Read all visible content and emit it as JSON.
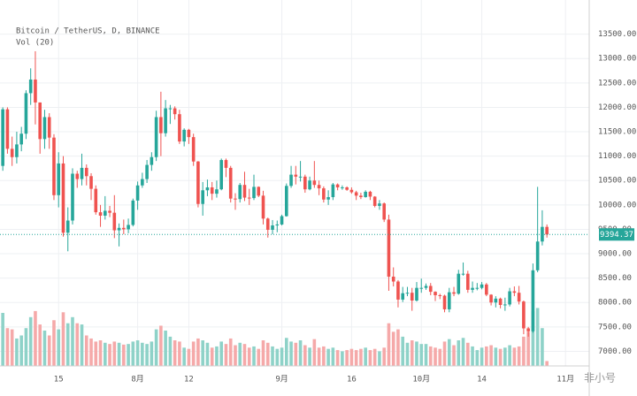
{
  "chart_data": {
    "type": "candlestick",
    "title": "Bitcoin / TetherUS, D, BINANCE",
    "subtitle": "Vol (20)",
    "watermark": "非小号",
    "up_color": "#26a69a",
    "down_color": "#ef5350",
    "up_volume_color": "#8ed2c8",
    "down_volume_color": "#f5a9a9",
    "grid": true,
    "ylim": [
      6700,
      14200
    ],
    "yticks": [
      {
        "value": 7000,
        "label": "7000.00"
      },
      {
        "value": 7500,
        "label": "7500.00"
      },
      {
        "value": 8000,
        "label": "8000.00"
      },
      {
        "value": 8500,
        "label": "8500.00"
      },
      {
        "value": 9000,
        "label": "9000.00"
      },
      {
        "value": 9500,
        "label": "9500.00"
      },
      {
        "value": 10000,
        "label": "10000.00"
      },
      {
        "value": 10500,
        "label": "10500.00"
      },
      {
        "value": 11000,
        "label": "11000.00"
      },
      {
        "value": 11500,
        "label": "11500.00"
      },
      {
        "value": 12000,
        "label": "12000.00"
      },
      {
        "value": 12500,
        "label": "12500.00"
      },
      {
        "value": 13000,
        "label": "13000.00"
      },
      {
        "value": 13500,
        "label": "13500.00"
      }
    ],
    "xlim": [
      -0.6,
      126.1
    ],
    "xticks": [
      {
        "value": 12,
        "label": "15"
      },
      {
        "value": 29,
        "label": "8月"
      },
      {
        "value": 40,
        "label": "12"
      },
      {
        "value": 60,
        "label": "9月"
      },
      {
        "value": 75,
        "label": "16"
      },
      {
        "value": 90,
        "label": "10月"
      },
      {
        "value": 103,
        "label": "14"
      },
      {
        "value": 121,
        "label": "11月"
      }
    ],
    "y2lim": [
      0,
      600
    ],
    "open": [
      10800,
      11960,
      11150,
      10980,
      11240,
      11460,
      12290,
      12570,
      12100,
      11350,
      11800,
      11380,
      10200,
      10850,
      9430,
      9680,
      10640,
      10530,
      10760,
      10590,
      10330,
      9850,
      9780,
      9880,
      9840,
      9480,
      9530,
      9500,
      9590,
      10090,
      10400,
      10530,
      10820,
      10980,
      11800,
      11470,
      11980,
      11980,
      11860,
      11300,
      11540,
      11390,
      10890,
      10020,
      10300,
      10360,
      10230,
      10320,
      10920,
      10760,
      10130,
      10120,
      10410,
      10150,
      10140,
      10370,
      10190,
      9720,
      9490,
      9580,
      9600,
      9770,
      10390,
      10620,
      10580,
      10580,
      10320,
      10500,
      10410,
      10340,
      10110,
      10160,
      10420,
      10360,
      10360,
      10310,
      10260,
      10190,
      10160,
      10270,
      10170,
      9980,
      10030,
      9700,
      8530,
      8430,
      8060,
      8190,
      8200,
      8040,
      8300,
      8300,
      8340,
      8220,
      8150,
      8140,
      7860,
      8210,
      8180,
      8590,
      8590,
      8260,
      8300,
      8300,
      8370,
      8160,
      8000,
      8080,
      7950,
      7960,
      8230,
      8200,
      8020,
      7470,
      7410,
      8660,
      9250,
      9550
    ],
    "high": [
      12000,
      12000,
      11400,
      11500,
      11600,
      12350,
      12800,
      13150,
      12100,
      11950,
      11880,
      11450,
      11080,
      11000,
      9950,
      10750,
      10700,
      11050,
      10830,
      10650,
      10400,
      10000,
      10180,
      9980,
      10200,
      9620,
      9700,
      9720,
      10130,
      10480,
      10660,
      10920,
      11080,
      11930,
      12320,
      12150,
      12050,
      12020,
      11950,
      11570,
      11560,
      11460,
      10900,
      10470,
      10520,
      10470,
      10500,
      10950,
      10950,
      10800,
      10240,
      10450,
      10680,
      10330,
      10620,
      10380,
      10290,
      9740,
      9690,
      9680,
      9800,
      10440,
      10800,
      10800,
      10900,
      10620,
      10580,
      10900,
      10500,
      10380,
      10300,
      10450,
      10440,
      10400,
      10380,
      10360,
      10290,
      10250,
      10300,
      10290,
      10180,
      10100,
      10050,
      9800,
      8720,
      8460,
      8320,
      8320,
      8300,
      8420,
      8490,
      8390,
      8400,
      8230,
      8180,
      8160,
      8300,
      8320,
      8670,
      8820,
      8650,
      8430,
      8400,
      8420,
      8400,
      8170,
      8130,
      8100,
      8100,
      8300,
      8330,
      8340,
      8040,
      7500,
      8800,
      10370,
      9890,
      9600
    ],
    "low": [
      10700,
      11050,
      10800,
      10850,
      11100,
      11350,
      12050,
      11650,
      11050,
      11150,
      11150,
      10100,
      9950,
      9350,
      9050,
      9600,
      10350,
      10400,
      10400,
      10100,
      9800,
      9550,
      9700,
      9750,
      9320,
      9150,
      9400,
      9420,
      9560,
      9900,
      10350,
      10450,
      10700,
      10900,
      11000,
      11400,
      11660,
      11750,
      11250,
      11200,
      11250,
      10800,
      9950,
      9780,
      10180,
      10100,
      10150,
      10300,
      10570,
      10050,
      9900,
      10050,
      10080,
      10000,
      10100,
      10160,
      9600,
      9330,
      9400,
      9440,
      9580,
      9760,
      10350,
      10420,
      10480,
      10250,
      10300,
      10350,
      10200,
      10050,
      10000,
      10100,
      10300,
      10310,
      10290,
      10230,
      10100,
      10120,
      10150,
      10100,
      9950,
      9900,
      9650,
      8240,
      8330,
      7900,
      8010,
      8130,
      7830,
      8020,
      8200,
      8260,
      8150,
      8030,
      8070,
      7800,
      7800,
      8130,
      8160,
      8550,
      8200,
      8200,
      8250,
      8270,
      8130,
      7940,
      7900,
      7880,
      7830,
      7920,
      8130,
      7960,
      7350,
      7300,
      7380,
      8620,
      9170,
      9330
    ],
    "close": [
      11960,
      11150,
      10980,
      11240,
      11460,
      12290,
      12570,
      12100,
      11350,
      11800,
      11380,
      10200,
      10850,
      9430,
      9680,
      10640,
      10530,
      10760,
      10590,
      10330,
      9850,
      9780,
      9880,
      9840,
      9480,
      9530,
      9500,
      9590,
      10090,
      10400,
      10530,
      10820,
      10980,
      11800,
      11470,
      11980,
      11980,
      11860,
      11300,
      11540,
      11390,
      10890,
      10020,
      10300,
      10360,
      10230,
      10320,
      10920,
      10760,
      10130,
      10120,
      10410,
      10150,
      10140,
      10370,
      10190,
      9720,
      9490,
      9580,
      9600,
      9770,
      10390,
      10620,
      10580,
      10580,
      10320,
      10500,
      10410,
      10340,
      10110,
      10160,
      10420,
      10360,
      10360,
      10310,
      10260,
      10190,
      10160,
      10270,
      10170,
      9980,
      10030,
      9700,
      8530,
      8430,
      8060,
      8190,
      8200,
      8040,
      8300,
      8300,
      8340,
      8220,
      8150,
      8140,
      7860,
      8210,
      8180,
      8590,
      8590,
      8260,
      8300,
      8300,
      8370,
      8160,
      8000,
      8080,
      7950,
      7960,
      8230,
      8200,
      8020,
      7470,
      7410,
      8660,
      9250,
      9550,
      9394.37
    ],
    "volume": [
      87,
      62,
      60,
      45,
      50,
      62,
      80,
      90,
      68,
      58,
      50,
      75,
      60,
      88,
      70,
      80,
      70,
      68,
      50,
      45,
      40,
      42,
      38,
      36,
      40,
      38,
      35,
      36,
      40,
      42,
      38,
      36,
      40,
      60,
      66,
      58,
      48,
      42,
      40,
      30,
      28,
      40,
      45,
      42,
      38,
      30,
      32,
      40,
      36,
      45,
      34,
      38,
      36,
      30,
      32,
      28,
      42,
      38,
      32,
      28,
      30,
      46,
      40,
      38,
      42,
      34,
      30,
      44,
      30,
      32,
      28,
      30,
      26,
      24,
      26,
      28,
      26,
      28,
      30,
      26,
      28,
      24,
      30,
      70,
      56,
      60,
      48,
      38,
      42,
      40,
      36,
      36,
      32,
      30,
      28,
      40,
      44,
      34,
      42,
      46,
      38,
      32,
      26,
      30,
      32,
      34,
      30,
      28,
      30,
      34,
      30,
      32,
      48,
      56,
      90,
      95,
      62,
      8
    ]
  }
}
